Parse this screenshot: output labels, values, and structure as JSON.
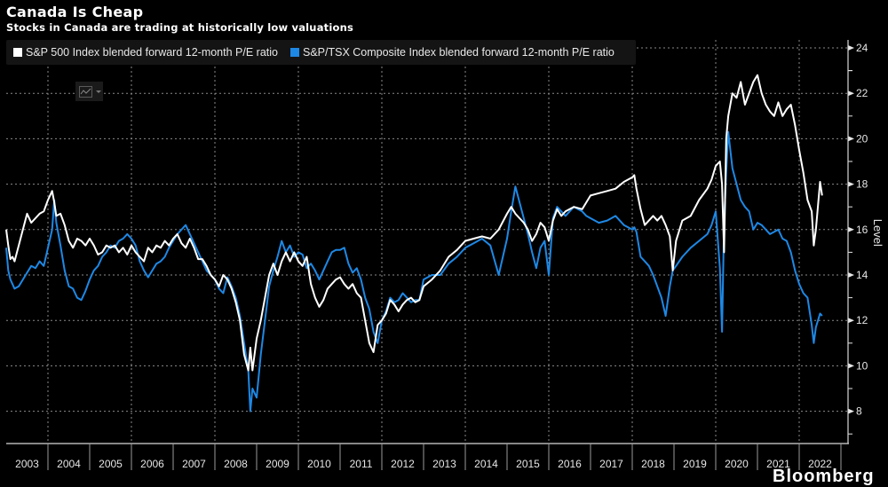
{
  "header": {
    "title": "Canada Is Cheap",
    "subtitle": "Stocks in Canada are trading at historically low valuations"
  },
  "legend": {
    "items": [
      {
        "label": "S&P 500 Index blended forward 12-month P/E ratio",
        "color": "#ffffff"
      },
      {
        "label": "S&P/TSX Composite Index blended forward 12-month P/E ratio",
        "color": "#1e88e5"
      }
    ]
  },
  "toolbar": {
    "chart_type_icon": "line-chart-icon"
  },
  "footer": {
    "logo_text": "Bloomberg"
  },
  "chart_data": {
    "type": "line",
    "title": "Canada Is Cheap",
    "subtitle": "Stocks in Canada are trading at historically low valuations",
    "xlabel": "",
    "ylabel": "Level",
    "ylim": [
      6.5,
      24.5
    ],
    "xlim": [
      2003.0,
      2023.0
    ],
    "yticks": [
      8,
      10,
      12,
      14,
      16,
      18,
      20,
      22,
      24
    ],
    "xtick_labels": [
      "2003",
      "2004",
      "2005",
      "2006",
      "2007",
      "2008",
      "2009",
      "2010",
      "2011",
      "2012",
      "2013",
      "2014",
      "2015",
      "2016",
      "2017",
      "2018",
      "2019",
      "2020",
      "2021",
      "2022"
    ],
    "grid": true,
    "legend_position": "top-left",
    "y_axis_side": "right",
    "series": [
      {
        "name": "S&P 500 Index blended forward 12-month P/E ratio",
        "color": "#ffffff",
        "x": [
          2003.0,
          2003.05,
          2003.1,
          2003.15,
          2003.2,
          2003.3,
          2003.4,
          2003.5,
          2003.6,
          2003.7,
          2003.8,
          2003.9,
          2004.0,
          2004.1,
          2004.15,
          2004.2,
          2004.3,
          2004.4,
          2004.5,
          2004.6,
          2004.7,
          2004.8,
          2004.9,
          2005.0,
          2005.1,
          2005.2,
          2005.3,
          2005.4,
          2005.5,
          2005.6,
          2005.7,
          2005.8,
          2005.9,
          2006.0,
          2006.1,
          2006.2,
          2006.3,
          2006.4,
          2006.5,
          2006.6,
          2006.7,
          2006.8,
          2006.9,
          2007.0,
          2007.1,
          2007.2,
          2007.3,
          2007.4,
          2007.5,
          2007.6,
          2007.7,
          2007.8,
          2007.9,
          2008.0,
          2008.1,
          2008.2,
          2008.3,
          2008.4,
          2008.5,
          2008.6,
          2008.7,
          2008.8,
          2008.85,
          2008.9,
          2009.0,
          2009.1,
          2009.2,
          2009.3,
          2009.4,
          2009.5,
          2009.6,
          2009.7,
          2009.8,
          2009.9,
          2010.0,
          2010.1,
          2010.2,
          2010.3,
          2010.4,
          2010.5,
          2010.6,
          2010.7,
          2010.8,
          2010.9,
          2011.0,
          2011.1,
          2011.2,
          2011.3,
          2011.4,
          2011.5,
          2011.6,
          2011.7,
          2011.8,
          2011.9,
          2012.0,
          2012.1,
          2012.2,
          2012.3,
          2012.4,
          2012.5,
          2012.6,
          2012.7,
          2012.8,
          2012.9,
          2013.0,
          2013.2,
          2013.4,
          2013.6,
          2013.8,
          2014.0,
          2014.2,
          2014.4,
          2014.6,
          2014.8,
          2015.0,
          2015.1,
          2015.2,
          2015.3,
          2015.4,
          2015.5,
          2015.6,
          2015.7,
          2015.8,
          2015.9,
          2016.0,
          2016.1,
          2016.2,
          2016.3,
          2016.4,
          2016.6,
          2016.8,
          2016.9,
          2017.0,
          2017.2,
          2017.4,
          2017.6,
          2017.8,
          2018.0,
          2018.05,
          2018.1,
          2018.2,
          2018.3,
          2018.4,
          2018.5,
          2018.6,
          2018.7,
          2018.8,
          2018.9,
          2018.97,
          2019.05,
          2019.2,
          2019.4,
          2019.6,
          2019.8,
          2019.9,
          2020.0,
          2020.1,
          2020.15,
          2020.2,
          2020.25,
          2020.3,
          2020.4,
          2020.5,
          2020.6,
          2020.7,
          2020.8,
          2020.9,
          2021.0,
          2021.1,
          2021.2,
          2021.3,
          2021.4,
          2021.5,
          2021.6,
          2021.7,
          2021.8,
          2021.9,
          2022.0,
          2022.1,
          2022.2,
          2022.3,
          2022.35,
          2022.4,
          2022.5,
          2022.55
        ],
        "values": [
          16.0,
          15.3,
          14.7,
          14.8,
          14.6,
          15.3,
          16.0,
          16.7,
          16.3,
          16.5,
          16.7,
          16.8,
          17.3,
          17.7,
          17.2,
          16.6,
          16.7,
          16.2,
          15.5,
          15.2,
          15.6,
          15.5,
          15.3,
          15.6,
          15.3,
          14.9,
          15.0,
          15.3,
          15.2,
          15.3,
          15.0,
          15.2,
          14.9,
          15.3,
          15.0,
          14.8,
          14.6,
          15.2,
          15.0,
          15.3,
          15.2,
          15.5,
          15.3,
          15.6,
          15.8,
          15.4,
          15.2,
          15.6,
          15.2,
          14.7,
          14.7,
          14.4,
          14.0,
          13.8,
          13.5,
          14.0,
          13.8,
          13.4,
          12.8,
          12.0,
          10.5,
          9.8,
          10.8,
          9.8,
          11.2,
          12.0,
          13.0,
          14.0,
          14.5,
          14.0,
          14.6,
          15.0,
          14.6,
          15.0,
          14.6,
          14.4,
          14.8,
          13.6,
          13.0,
          12.6,
          12.9,
          13.4,
          13.6,
          13.8,
          13.9,
          13.6,
          13.4,
          13.6,
          13.2,
          13.0,
          12.0,
          11.0,
          10.6,
          11.8,
          12.0,
          12.3,
          12.9,
          12.7,
          12.4,
          12.7,
          12.9,
          13.0,
          12.8,
          12.9,
          13.5,
          13.8,
          14.2,
          14.8,
          15.1,
          15.5,
          15.6,
          15.7,
          15.6,
          16.0,
          16.7,
          17.0,
          16.7,
          16.5,
          16.3,
          16.0,
          15.5,
          15.8,
          16.3,
          16.1,
          15.5,
          16.4,
          16.9,
          16.6,
          16.8,
          17.0,
          16.9,
          17.2,
          17.5,
          17.6,
          17.7,
          17.8,
          18.1,
          18.3,
          18.4,
          17.8,
          16.9,
          16.2,
          16.4,
          16.6,
          16.4,
          16.6,
          16.2,
          15.7,
          14.2,
          15.5,
          16.4,
          16.6,
          17.3,
          17.8,
          18.2,
          18.8,
          19.0,
          18.0,
          15.0,
          20.0,
          21.0,
          22.0,
          21.8,
          22.5,
          21.5,
          22.0,
          22.5,
          22.8,
          22.0,
          21.5,
          21.2,
          21.0,
          21.6,
          21.0,
          21.3,
          21.5,
          20.6,
          19.5,
          18.5,
          17.3,
          16.8,
          15.3,
          16.0,
          18.1,
          17.5
        ]
      },
      {
        "name": "S&P/TSX Composite Index blended forward 12-month P/E ratio",
        "color": "#1e88e5",
        "x": [
          2003.0,
          2003.05,
          2003.1,
          2003.2,
          2003.3,
          2003.4,
          2003.5,
          2003.6,
          2003.7,
          2003.8,
          2003.9,
          2004.0,
          2004.1,
          2004.15,
          2004.2,
          2004.3,
          2004.4,
          2004.5,
          2004.6,
          2004.7,
          2004.8,
          2004.9,
          2005.0,
          2005.1,
          2005.2,
          2005.3,
          2005.4,
          2005.5,
          2005.6,
          2005.7,
          2005.8,
          2005.9,
          2006.0,
          2006.1,
          2006.2,
          2006.3,
          2006.4,
          2006.5,
          2006.6,
          2006.7,
          2006.8,
          2006.9,
          2007.0,
          2007.1,
          2007.2,
          2007.3,
          2007.4,
          2007.5,
          2007.6,
          2007.7,
          2007.8,
          2007.9,
          2008.0,
          2008.1,
          2008.2,
          2008.3,
          2008.4,
          2008.5,
          2008.6,
          2008.7,
          2008.8,
          2008.85,
          2008.9,
          2009.0,
          2009.1,
          2009.2,
          2009.3,
          2009.4,
          2009.5,
          2009.6,
          2009.7,
          2009.8,
          2009.9,
          2010.0,
          2010.1,
          2010.2,
          2010.3,
          2010.4,
          2010.5,
          2010.6,
          2010.7,
          2010.8,
          2010.9,
          2011.0,
          2011.1,
          2011.2,
          2011.3,
          2011.4,
          2011.5,
          2011.6,
          2011.7,
          2011.8,
          2011.9,
          2012.0,
          2012.1,
          2012.2,
          2012.3,
          2012.4,
          2012.5,
          2012.6,
          2012.7,
          2012.8,
          2012.9,
          2013.0,
          2013.2,
          2013.4,
          2013.6,
          2013.8,
          2014.0,
          2014.2,
          2014.4,
          2014.6,
          2014.8,
          2015.0,
          2015.1,
          2015.2,
          2015.3,
          2015.4,
          2015.5,
          2015.6,
          2015.7,
          2015.8,
          2015.9,
          2016.0,
          2016.1,
          2016.2,
          2016.3,
          2016.4,
          2016.6,
          2016.8,
          2016.9,
          2017.0,
          2017.2,
          2017.4,
          2017.6,
          2017.8,
          2018.0,
          2018.05,
          2018.1,
          2018.2,
          2018.3,
          2018.4,
          2018.5,
          2018.6,
          2018.7,
          2018.8,
          2018.9,
          2018.97,
          2019.05,
          2019.2,
          2019.4,
          2019.6,
          2019.8,
          2019.9,
          2020.0,
          2020.1,
          2020.15,
          2020.2,
          2020.25,
          2020.3,
          2020.4,
          2020.5,
          2020.6,
          2020.7,
          2020.8,
          2020.9,
          2021.0,
          2021.1,
          2021.2,
          2021.3,
          2021.4,
          2021.5,
          2021.6,
          2021.7,
          2021.8,
          2021.9,
          2022.0,
          2022.1,
          2022.2,
          2022.3,
          2022.35,
          2022.4,
          2022.5,
          2022.55
        ],
        "values": [
          15.2,
          14.2,
          13.8,
          13.4,
          13.5,
          13.8,
          14.1,
          14.4,
          14.3,
          14.6,
          14.4,
          15.2,
          16.0,
          17.3,
          16.3,
          15.3,
          14.2,
          13.5,
          13.4,
          13.0,
          12.9,
          13.3,
          13.8,
          14.2,
          14.4,
          14.8,
          15.0,
          15.3,
          15.2,
          15.5,
          15.6,
          15.8,
          15.6,
          15.3,
          14.6,
          14.2,
          13.9,
          14.2,
          14.5,
          14.6,
          14.8,
          15.2,
          15.5,
          15.8,
          16.0,
          16.2,
          15.8,
          15.4,
          15.0,
          14.6,
          14.2,
          14.0,
          13.8,
          13.4,
          13.2,
          13.9,
          13.5,
          13.0,
          12.2,
          11.0,
          9.8,
          8.0,
          9.0,
          8.6,
          10.5,
          12.0,
          13.5,
          14.2,
          14.8,
          15.5,
          15.0,
          15.3,
          14.8,
          15.0,
          14.9,
          14.3,
          14.5,
          14.2,
          13.8,
          14.2,
          14.6,
          15.0,
          15.1,
          15.1,
          15.2,
          14.5,
          14.1,
          14.3,
          13.8,
          13.0,
          12.5,
          11.5,
          11.0,
          12.0,
          12.4,
          13.0,
          12.8,
          12.9,
          13.2,
          13.0,
          12.8,
          12.9,
          12.9,
          13.8,
          14.0,
          14.0,
          14.5,
          14.8,
          15.2,
          15.4,
          15.6,
          15.3,
          14.0,
          15.6,
          16.8,
          17.9,
          17.2,
          16.5,
          15.8,
          15.0,
          14.3,
          15.2,
          15.5,
          14.0,
          16.5,
          17.0,
          16.8,
          16.6,
          17.0,
          16.8,
          16.6,
          16.5,
          16.3,
          16.4,
          16.6,
          16.2,
          16.0,
          16.1,
          15.9,
          14.8,
          14.6,
          14.4,
          14.0,
          13.5,
          13.0,
          12.2,
          13.5,
          14.2,
          14.4,
          14.8,
          15.2,
          15.5,
          15.8,
          16.2,
          16.8,
          14.3,
          11.5,
          16.3,
          18.5,
          20.3,
          18.7,
          18.0,
          17.3,
          17.0,
          16.8,
          16.0,
          16.3,
          16.2,
          16.0,
          15.8,
          15.9,
          16.0,
          15.6,
          15.5,
          15.0,
          14.2,
          13.6,
          13.2,
          13.0,
          11.8,
          11.0,
          11.7,
          12.3,
          12.2
        ]
      }
    ]
  }
}
